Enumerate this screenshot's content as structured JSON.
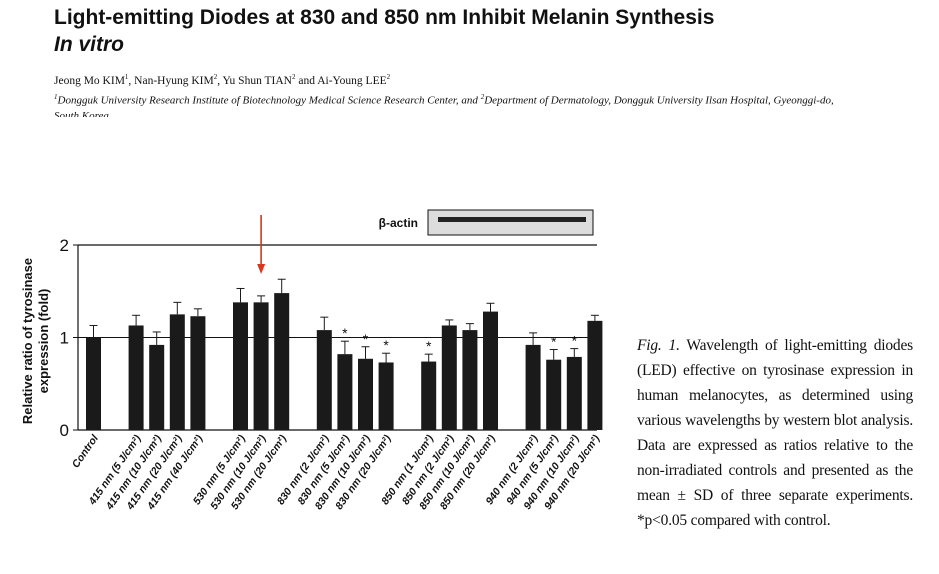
{
  "header": {
    "title_line1": "Light-emitting Diodes at 830 and 850 nm Inhibit Melanin Synthesis",
    "title_line2": "In vitro",
    "authors": [
      {
        "name": "Jeong Mo KIM",
        "sup": "1",
        "sep": ", "
      },
      {
        "name": "Nan-Hyung KIM",
        "sup": "2",
        "sep": ", "
      },
      {
        "name": "Yu Shun TIAN",
        "sup": "2",
        "sep": " and "
      },
      {
        "name": "Ai-Young LEE",
        "sup": "2",
        "sep": ""
      }
    ],
    "affiliation_sup1": "1",
    "affiliation_text1": "Dongguk University Research Institute of Biotechnology Medical Science Research Center, and ",
    "affiliation_sup2": "2",
    "affiliation_text2": "Department of Dermatology, Dongguk University Ilsan Hospital, Gyeonggi-do, South Korea"
  },
  "blot_label": "β-actin",
  "caption": {
    "fig_label": "Fig. 1.",
    "text": " Wavelength of light-emitting diodes (LED) effective on tyrosinase expression in human melanocytes, as determined using various wavelengths by western blot analysis. Data are expressed as ratios relative to the non-irradiated controls and presented as the mean ± SD of three separate experiments. *p<0.05 compared with control."
  },
  "chart_data": {
    "type": "bar",
    "ylabel_line1": "Relative ratio of tyrosinase",
    "ylabel_line2": "expression (fold)",
    "ylim": [
      0,
      2
    ],
    "yticks": [
      "0",
      "1",
      "2"
    ],
    "reference_line": 1,
    "categories": [
      "Control",
      "415 nm (5 J/cm²)",
      "415 nm (10 J/cm²)",
      "415 nm (20 J/cm²)",
      "415 nm (40 J/cm²)",
      "530 nm (5 J/cm²)",
      "530 nm (10 J/cm²)",
      "530 nm (20 J/cm²)",
      "830 nm (2 J/cm²)",
      "830 nm (5 J/cm²)",
      "830 nm (10 J/cm²)",
      "830 nm (20 J/cm²)",
      "850 nm (1 J/cm²)",
      "850 nm (2 J/cm²)",
      "850 nm (10 J/cm²)",
      "850 nm (20 J/cm²)",
      "940 nm (2 J/cm²)",
      "940 nm (5 J/cm²)",
      "940 nm (10 J/cm²)",
      "940 nm (20 J/cm²)"
    ],
    "groups": [
      0,
      1,
      1,
      1,
      1,
      2,
      2,
      2,
      3,
      3,
      3,
      3,
      4,
      4,
      4,
      4,
      5,
      5,
      5,
      5
    ],
    "values": [
      1.0,
      1.13,
      0.92,
      1.25,
      1.23,
      1.38,
      1.38,
      1.48,
      1.08,
      0.82,
      0.77,
      0.73,
      0.74,
      1.13,
      1.08,
      1.28,
      0.92,
      0.76,
      0.79,
      1.18
    ],
    "errors": [
      0.13,
      0.11,
      0.14,
      0.13,
      0.08,
      0.15,
      0.07,
      0.15,
      0.14,
      0.14,
      0.13,
      0.1,
      0.08,
      0.06,
      0.07,
      0.09,
      0.13,
      0.11,
      0.09,
      0.06
    ],
    "significant": [
      false,
      false,
      false,
      false,
      false,
      false,
      false,
      false,
      false,
      true,
      true,
      true,
      true,
      false,
      false,
      false,
      false,
      true,
      true,
      false
    ],
    "significance_marker": "*",
    "arrow_at_category": "530 nm (10 J/cm²)",
    "colors": {
      "bar": "#1a1a1a",
      "arrow": "#d9361c",
      "axis": "#111111",
      "blot_bg": "#dcdcdc"
    }
  }
}
